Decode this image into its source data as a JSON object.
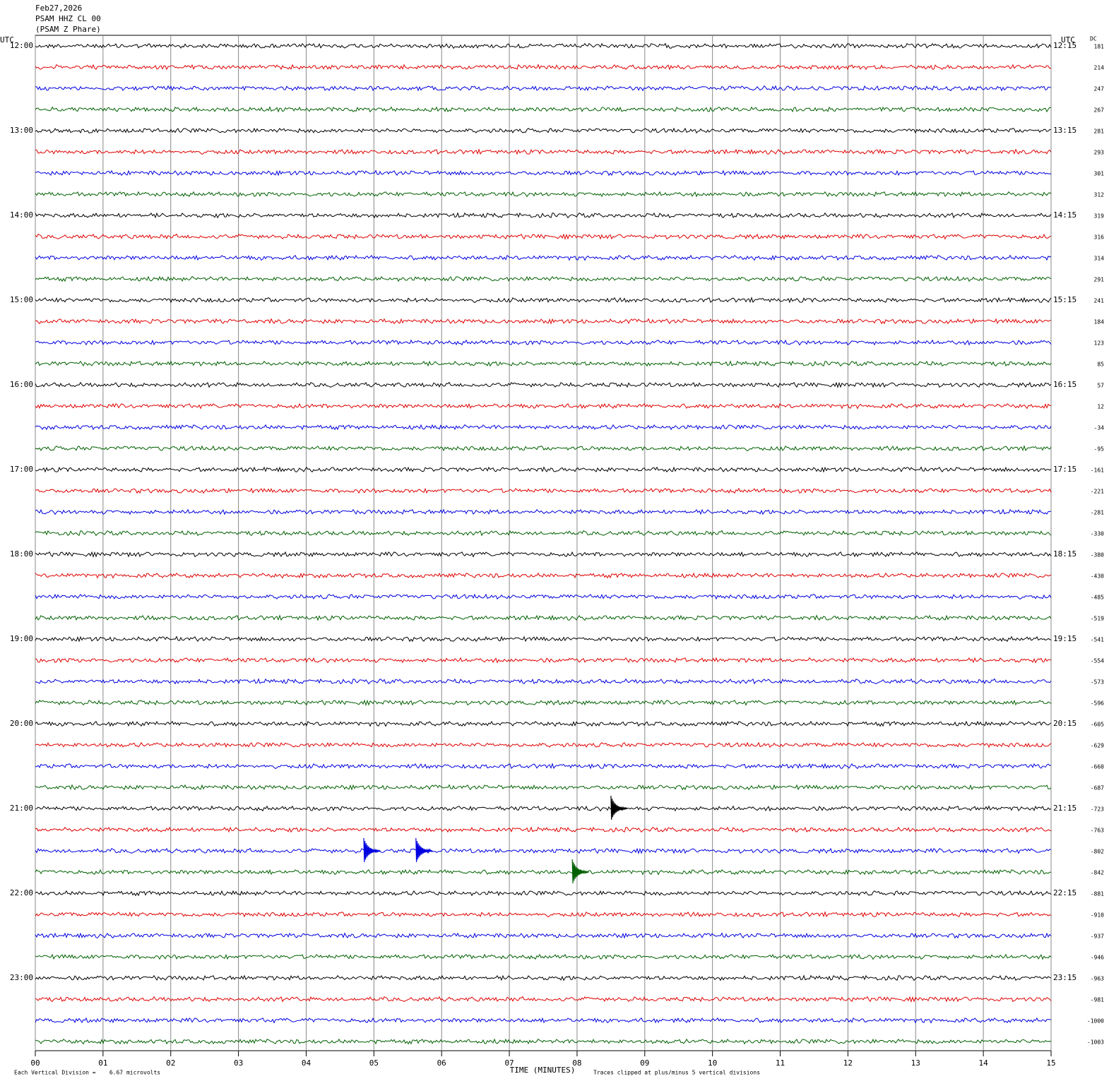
{
  "chart_data": {
    "type": "helicorder",
    "title_lines": [
      "Feb27,2026",
      "PSAM HHZ CL 00",
      "(PSAM Z Phare)"
    ],
    "left_axis_label": "UTC",
    "right_axis_label": "UTC",
    "dc_label": "DC",
    "left_labels": [
      "12:00",
      "13:00",
      "14:00",
      "15:00",
      "16:00",
      "17:00",
      "18:00",
      "19:00",
      "20:00",
      "21:00",
      "22:00",
      "23:00"
    ],
    "right_labels": [
      "12:15",
      "13:15",
      "14:15",
      "15:15",
      "16:15",
      "17:15",
      "18:15",
      "19:15",
      "20:15",
      "21:15",
      "22:15",
      "23:15"
    ],
    "dc_values": [
      181,
      214,
      247,
      267,
      281,
      293,
      301,
      312,
      319,
      316,
      314,
      291,
      241,
      184,
      123,
      85,
      57,
      12,
      -34,
      -95,
      -161,
      -221,
      -281,
      -330,
      -380,
      -430,
      -485,
      -519,
      -541,
      -554,
      -573,
      -596,
      -605,
      -629,
      -660,
      -687,
      -723,
      -763,
      -802,
      -842,
      -881,
      -910,
      -937,
      -946,
      -963,
      -981,
      -1000,
      -1003
    ],
    "trace_colors": [
      "#000000",
      "#e00000",
      "#0000e0",
      "#006000"
    ],
    "xlim": [
      0,
      15
    ],
    "xticks": [
      {
        "value": 0,
        "label": "00"
      },
      {
        "value": 1,
        "label": "01"
      },
      {
        "value": 2,
        "label": "02"
      },
      {
        "value": 3,
        "label": "03"
      },
      {
        "value": 4,
        "label": "04"
      },
      {
        "value": 5,
        "label": "05"
      },
      {
        "value": 6,
        "label": "06"
      },
      {
        "value": 7,
        "label": "07"
      },
      {
        "value": 8,
        "label": "08"
      },
      {
        "value": 9,
        "label": "09"
      },
      10,
      11,
      12,
      13,
      14,
      15
    ],
    "xlabel": "TIME (MINUTES)",
    "scale_note": "Each Vertical Division =    6.67 microvolts",
    "clip_note": "Traces clipped at plus/minus 5 vertical divisions",
    "events": [
      {
        "row": 36,
        "minute": 8.5
      },
      {
        "row": 38,
        "minute": 4.85
      },
      {
        "row": 38,
        "minute": 5.62
      },
      {
        "row": 39,
        "minute": 7.93
      }
    ],
    "grid": true
  }
}
